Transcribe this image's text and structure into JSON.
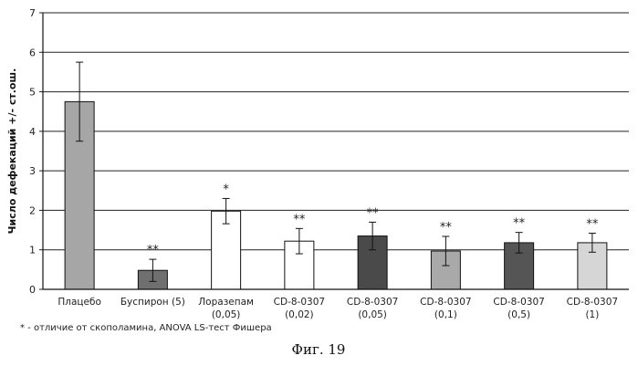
{
  "chart_data": {
    "type": "bar",
    "ylabel": "Число дефекаций +/- ст.ош.",
    "ylim": [
      0,
      7
    ],
    "yticks": [
      0,
      1,
      2,
      3,
      4,
      5,
      6,
      7
    ],
    "grid": true,
    "bars": [
      {
        "label_lines": [
          "Плацебо"
        ],
        "value": 4.75,
        "error": 1.0,
        "significance": "",
        "color": "#a6a6a6"
      },
      {
        "label_lines": [
          "Буспирон (5)"
        ],
        "value": 0.48,
        "error": 0.28,
        "significance": "**",
        "color": "#6f6f6f"
      },
      {
        "label_lines": [
          "Лоразепам",
          "(0,05)"
        ],
        "value": 1.98,
        "error": 0.32,
        "significance": "*",
        "color": "#ffffff"
      },
      {
        "label_lines": [
          "CD-8-0307",
          "(0,02)"
        ],
        "value": 1.22,
        "error": 0.32,
        "significance": "**",
        "color": "#ffffff"
      },
      {
        "label_lines": [
          "CD-8-0307",
          "(0,05)"
        ],
        "value": 1.35,
        "error": 0.35,
        "significance": "**",
        "color": "#4a4a4a"
      },
      {
        "label_lines": [
          "CD-8-0307",
          "(0,1)"
        ],
        "value": 0.97,
        "error": 0.37,
        "significance": "**",
        "color": "#a9a9a9"
      },
      {
        "label_lines": [
          "CD-8-0307",
          "(0,5)"
        ],
        "value": 1.18,
        "error": 0.26,
        "significance": "**",
        "color": "#555555"
      },
      {
        "label_lines": [
          "CD-8-0307",
          "(1)"
        ],
        "value": 1.18,
        "error": 0.24,
        "significance": "**",
        "color": "#d6d6d6"
      }
    ]
  },
  "footnote": "* - отличие от скополамина, ANOVA LS-тест Фишера",
  "caption": "Фиг. 19"
}
